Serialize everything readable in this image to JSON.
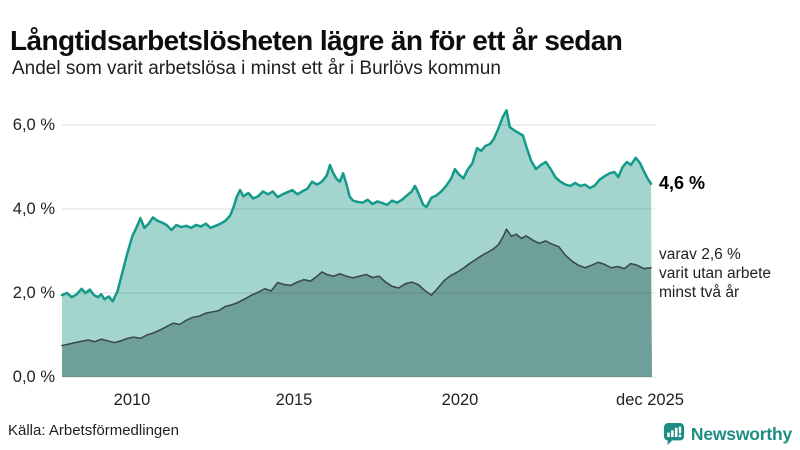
{
  "annotations": {
    "end_value": "4,6 %",
    "secondary": [
      "varav 2,6 %",
      "varit utan arbete",
      "minst två år"
    ]
  },
  "footer": {
    "source": "Källa: Arbetsförmedlingen",
    "logo_text": "Newsworthy"
  },
  "colors": {
    "primary_line": "#149a8b",
    "primary_fill": "#a3d5ce",
    "secondary_line": "#3a4a4f",
    "secondary_fill": "#6f9f99",
    "grid": "#dcdcdc",
    "brand_teal": "#1d8d81",
    "title_text": "#0d0d0d"
  },
  "chart_data": {
    "type": "area",
    "title": "Långtidsarbetslösheten lägre än för ett år sedan",
    "subtitle": "Andel som varit arbetslösa i minst ett år i Burlövs kommun",
    "source": "Källa: Arbetsförmedlingen",
    "legend": "none",
    "y_axis": {
      "unit": "%",
      "grid": true,
      "range": [
        0,
        6.6
      ],
      "ticks": [
        {
          "value": 6,
          "label": "6,0 %"
        },
        {
          "value": 4,
          "label": "4,0 %"
        },
        {
          "value": 2,
          "label": "2,0 %"
        },
        {
          "value": 0,
          "label": "0,0 %"
        }
      ]
    },
    "x_axis": {
      "range": [
        2007.9,
        2025.95
      ],
      "ticks": [
        {
          "year": 2010,
          "label": "2010"
        },
        {
          "year": 2015,
          "label": "2015"
        },
        {
          "year": 2020,
          "label": "2020"
        },
        {
          "year": 2025.92,
          "label": "dec 2025"
        }
      ]
    },
    "series": [
      {
        "name": "Arbetslösa minst ett år",
        "latest_value": 4.6,
        "latest_label": "4,6 %",
        "line_color": "#149a8b",
        "fill_color": "#a3d5ce",
        "points": [
          [
            2007.9,
            1.95
          ],
          [
            2008.05,
            2.0
          ],
          [
            2008.2,
            1.9
          ],
          [
            2008.35,
            1.97
          ],
          [
            2008.5,
            2.1
          ],
          [
            2008.62,
            2.0
          ],
          [
            2008.75,
            2.08
          ],
          [
            2008.88,
            1.95
          ],
          [
            2009.0,
            1.9
          ],
          [
            2009.1,
            1.97
          ],
          [
            2009.2,
            1.85
          ],
          [
            2009.33,
            1.92
          ],
          [
            2009.45,
            1.8
          ],
          [
            2009.6,
            2.05
          ],
          [
            2009.75,
            2.5
          ],
          [
            2009.9,
            2.95
          ],
          [
            2010.05,
            3.35
          ],
          [
            2010.2,
            3.6
          ],
          [
            2010.3,
            3.78
          ],
          [
            2010.42,
            3.55
          ],
          [
            2010.55,
            3.65
          ],
          [
            2010.68,
            3.8
          ],
          [
            2010.82,
            3.72
          ],
          [
            2010.95,
            3.68
          ],
          [
            2011.1,
            3.62
          ],
          [
            2011.25,
            3.5
          ],
          [
            2011.4,
            3.62
          ],
          [
            2011.55,
            3.57
          ],
          [
            2011.7,
            3.6
          ],
          [
            2011.85,
            3.55
          ],
          [
            2012.0,
            3.62
          ],
          [
            2012.15,
            3.58
          ],
          [
            2012.3,
            3.65
          ],
          [
            2012.45,
            3.55
          ],
          [
            2012.6,
            3.6
          ],
          [
            2012.75,
            3.65
          ],
          [
            2012.9,
            3.72
          ],
          [
            2013.05,
            3.85
          ],
          [
            2013.15,
            4.05
          ],
          [
            2013.25,
            4.3
          ],
          [
            2013.35,
            4.45
          ],
          [
            2013.45,
            4.3
          ],
          [
            2013.6,
            4.38
          ],
          [
            2013.75,
            4.25
          ],
          [
            2013.9,
            4.3
          ],
          [
            2014.05,
            4.42
          ],
          [
            2014.2,
            4.35
          ],
          [
            2014.35,
            4.42
          ],
          [
            2014.5,
            4.28
          ],
          [
            2014.65,
            4.35
          ],
          [
            2014.8,
            4.4
          ],
          [
            2014.95,
            4.45
          ],
          [
            2015.1,
            4.35
          ],
          [
            2015.25,
            4.42
          ],
          [
            2015.4,
            4.48
          ],
          [
            2015.55,
            4.65
          ],
          [
            2015.7,
            4.58
          ],
          [
            2015.85,
            4.65
          ],
          [
            2016.0,
            4.8
          ],
          [
            2016.1,
            5.05
          ],
          [
            2016.2,
            4.85
          ],
          [
            2016.3,
            4.72
          ],
          [
            2016.4,
            4.65
          ],
          [
            2016.5,
            4.85
          ],
          [
            2016.6,
            4.6
          ],
          [
            2016.7,
            4.3
          ],
          [
            2016.8,
            4.2
          ],
          [
            2016.95,
            4.17
          ],
          [
            2017.1,
            4.15
          ],
          [
            2017.25,
            4.22
          ],
          [
            2017.4,
            4.12
          ],
          [
            2017.55,
            4.18
          ],
          [
            2017.7,
            4.14
          ],
          [
            2017.85,
            4.1
          ],
          [
            2018.0,
            4.2
          ],
          [
            2018.15,
            4.15
          ],
          [
            2018.3,
            4.22
          ],
          [
            2018.45,
            4.32
          ],
          [
            2018.6,
            4.42
          ],
          [
            2018.7,
            4.55
          ],
          [
            2018.82,
            4.35
          ],
          [
            2018.95,
            4.1
          ],
          [
            2019.05,
            4.05
          ],
          [
            2019.2,
            4.27
          ],
          [
            2019.35,
            4.32
          ],
          [
            2019.5,
            4.42
          ],
          [
            2019.65,
            4.55
          ],
          [
            2019.8,
            4.72
          ],
          [
            2019.92,
            4.95
          ],
          [
            2020.05,
            4.82
          ],
          [
            2020.18,
            4.73
          ],
          [
            2020.32,
            4.95
          ],
          [
            2020.45,
            5.08
          ],
          [
            2020.6,
            5.45
          ],
          [
            2020.72,
            5.38
          ],
          [
            2020.85,
            5.5
          ],
          [
            2021.0,
            5.55
          ],
          [
            2021.12,
            5.68
          ],
          [
            2021.25,
            5.92
          ],
          [
            2021.38,
            6.18
          ],
          [
            2021.5,
            6.35
          ],
          [
            2021.6,
            5.95
          ],
          [
            2021.72,
            5.88
          ],
          [
            2021.85,
            5.82
          ],
          [
            2022.0,
            5.75
          ],
          [
            2022.12,
            5.45
          ],
          [
            2022.25,
            5.15
          ],
          [
            2022.4,
            4.95
          ],
          [
            2022.55,
            5.05
          ],
          [
            2022.7,
            5.12
          ],
          [
            2022.85,
            4.95
          ],
          [
            2023.0,
            4.75
          ],
          [
            2023.15,
            4.65
          ],
          [
            2023.3,
            4.58
          ],
          [
            2023.45,
            4.55
          ],
          [
            2023.6,
            4.62
          ],
          [
            2023.75,
            4.55
          ],
          [
            2023.9,
            4.58
          ],
          [
            2024.05,
            4.5
          ],
          [
            2024.2,
            4.56
          ],
          [
            2024.35,
            4.7
          ],
          [
            2024.5,
            4.78
          ],
          [
            2024.65,
            4.85
          ],
          [
            2024.8,
            4.88
          ],
          [
            2024.92,
            4.76
          ],
          [
            2025.05,
            5.0
          ],
          [
            2025.18,
            5.12
          ],
          [
            2025.3,
            5.05
          ],
          [
            2025.45,
            5.22
          ],
          [
            2025.58,
            5.1
          ],
          [
            2025.7,
            4.9
          ],
          [
            2025.82,
            4.72
          ],
          [
            2025.92,
            4.6
          ]
        ]
      },
      {
        "name": "Utan arbete minst två år",
        "latest_value": 2.6,
        "latest_label": "varav 2,6 %",
        "line_color": "#3a4a4f",
        "fill_color": "#6f9f99",
        "points": [
          [
            2007.9,
            0.75
          ],
          [
            2008.1,
            0.78
          ],
          [
            2008.3,
            0.82
          ],
          [
            2008.5,
            0.85
          ],
          [
            2008.7,
            0.88
          ],
          [
            2008.9,
            0.84
          ],
          [
            2009.1,
            0.9
          ],
          [
            2009.3,
            0.86
          ],
          [
            2009.5,
            0.82
          ],
          [
            2009.7,
            0.86
          ],
          [
            2009.9,
            0.92
          ],
          [
            2010.1,
            0.95
          ],
          [
            2010.3,
            0.92
          ],
          [
            2010.5,
            1.0
          ],
          [
            2010.7,
            1.05
          ],
          [
            2010.9,
            1.12
          ],
          [
            2011.1,
            1.2
          ],
          [
            2011.3,
            1.28
          ],
          [
            2011.5,
            1.25
          ],
          [
            2011.7,
            1.35
          ],
          [
            2011.9,
            1.42
          ],
          [
            2012.1,
            1.45
          ],
          [
            2012.3,
            1.52
          ],
          [
            2012.5,
            1.55
          ],
          [
            2012.7,
            1.58
          ],
          [
            2012.9,
            1.68
          ],
          [
            2013.1,
            1.72
          ],
          [
            2013.3,
            1.78
          ],
          [
            2013.5,
            1.86
          ],
          [
            2013.7,
            1.95
          ],
          [
            2013.9,
            2.02
          ],
          [
            2014.1,
            2.1
          ],
          [
            2014.3,
            2.05
          ],
          [
            2014.5,
            2.25
          ],
          [
            2014.7,
            2.2
          ],
          [
            2014.9,
            2.18
          ],
          [
            2015.1,
            2.26
          ],
          [
            2015.3,
            2.32
          ],
          [
            2015.5,
            2.28
          ],
          [
            2015.7,
            2.4
          ],
          [
            2015.85,
            2.5
          ],
          [
            2016.0,
            2.44
          ],
          [
            2016.2,
            2.4
          ],
          [
            2016.4,
            2.46
          ],
          [
            2016.6,
            2.4
          ],
          [
            2016.8,
            2.36
          ],
          [
            2017.0,
            2.4
          ],
          [
            2017.2,
            2.44
          ],
          [
            2017.4,
            2.37
          ],
          [
            2017.6,
            2.4
          ],
          [
            2017.8,
            2.26
          ],
          [
            2018.0,
            2.16
          ],
          [
            2018.2,
            2.12
          ],
          [
            2018.4,
            2.22
          ],
          [
            2018.6,
            2.26
          ],
          [
            2018.8,
            2.2
          ],
          [
            2019.0,
            2.06
          ],
          [
            2019.2,
            1.95
          ],
          [
            2019.4,
            2.12
          ],
          [
            2019.6,
            2.3
          ],
          [
            2019.8,
            2.42
          ],
          [
            2020.0,
            2.5
          ],
          [
            2020.2,
            2.6
          ],
          [
            2020.4,
            2.72
          ],
          [
            2020.6,
            2.82
          ],
          [
            2020.8,
            2.92
          ],
          [
            2020.95,
            2.98
          ],
          [
            2021.1,
            3.05
          ],
          [
            2021.25,
            3.15
          ],
          [
            2021.4,
            3.35
          ],
          [
            2021.5,
            3.52
          ],
          [
            2021.65,
            3.35
          ],
          [
            2021.8,
            3.4
          ],
          [
            2021.95,
            3.3
          ],
          [
            2022.1,
            3.36
          ],
          [
            2022.3,
            3.26
          ],
          [
            2022.5,
            3.18
          ],
          [
            2022.7,
            3.24
          ],
          [
            2022.9,
            3.16
          ],
          [
            2023.1,
            3.1
          ],
          [
            2023.3,
            2.9
          ],
          [
            2023.5,
            2.76
          ],
          [
            2023.7,
            2.66
          ],
          [
            2023.9,
            2.6
          ],
          [
            2024.1,
            2.66
          ],
          [
            2024.3,
            2.73
          ],
          [
            2024.5,
            2.68
          ],
          [
            2024.7,
            2.6
          ],
          [
            2024.9,
            2.63
          ],
          [
            2025.1,
            2.58
          ],
          [
            2025.3,
            2.7
          ],
          [
            2025.5,
            2.66
          ],
          [
            2025.7,
            2.58
          ],
          [
            2025.92,
            2.6
          ]
        ]
      }
    ]
  }
}
